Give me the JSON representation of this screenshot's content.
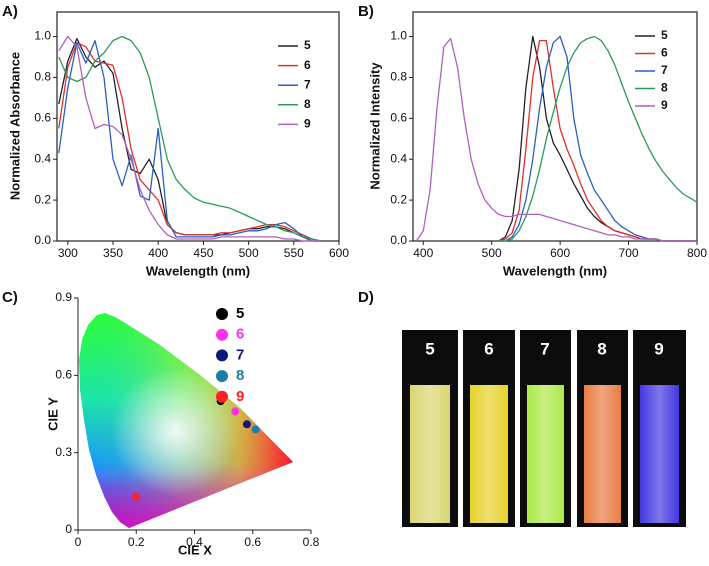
{
  "chart_data": [
    {
      "type": "line",
      "panel_label": "A)",
      "x_label": "Wavelength (nm)",
      "y_label": "Normalized Absorbance",
      "xlim": [
        288,
        600
      ],
      "xticks": [
        300,
        350,
        400,
        450,
        500,
        550,
        600
      ],
      "ylim": [
        0,
        1.12
      ],
      "yticks": [
        {
          "value": 0,
          "label": "0.0"
        },
        0.2,
        0.4,
        0.6,
        0.8,
        {
          "value": 1,
          "label": "1.0"
        }
      ],
      "x": [
        290,
        300,
        310,
        320,
        330,
        340,
        350,
        360,
        370,
        380,
        390,
        400,
        410,
        420,
        430,
        440,
        450,
        460,
        470,
        480,
        490,
        500,
        510,
        520,
        530,
        540,
        550,
        560,
        570,
        580,
        590,
        600
      ],
      "series": [
        {
          "name": "5",
          "color": "#222222",
          "values": [
            0.67,
            0.88,
            0.99,
            0.9,
            0.85,
            0.88,
            0.82,
            0.55,
            0.35,
            0.33,
            0.4,
            0.3,
            0.08,
            0.04,
            0.03,
            0.03,
            0.03,
            0.03,
            0.03,
            0.04,
            0.05,
            0.06,
            0.06,
            0.07,
            0.07,
            0.06,
            0.04,
            0.02,
            0.01,
            0,
            null,
            null
          ]
        },
        {
          "name": "6",
          "color": "#e0302a",
          "values": [
            0.55,
            0.85,
            0.97,
            0.95,
            0.88,
            0.87,
            0.86,
            0.7,
            0.45,
            0.3,
            0.25,
            0.2,
            0.08,
            0.04,
            0.03,
            0.03,
            0.03,
            0.03,
            0.04,
            0.04,
            0.05,
            0.06,
            0.07,
            0.08,
            0.08,
            0.07,
            0.05,
            0.03,
            0.01,
            0,
            null,
            null
          ]
        },
        {
          "name": "7",
          "color": "#2a5fc0",
          "values": [
            0.43,
            0.75,
            0.97,
            0.87,
            0.98,
            0.8,
            0.4,
            0.27,
            0.42,
            0.22,
            0.2,
            0.55,
            0.1,
            0.02,
            0.02,
            0.02,
            0.02,
            0.02,
            0.03,
            0.03,
            0.04,
            0.05,
            0.05,
            0.06,
            0.08,
            0.09,
            0.06,
            0.02,
            0,
            0,
            null,
            null
          ]
        },
        {
          "name": "8",
          "color": "#2a9a5a",
          "values": [
            0.9,
            0.8,
            0.78,
            0.8,
            0.88,
            0.92,
            0.98,
            1.0,
            0.98,
            0.92,
            0.8,
            0.6,
            0.4,
            0.3,
            0.25,
            0.21,
            0.19,
            0.18,
            0.17,
            0.16,
            0.14,
            0.12,
            0.1,
            0.08,
            0.07,
            0.05,
            0.04,
            0.02,
            0.01,
            0,
            null,
            null
          ]
        },
        {
          "name": "9",
          "color": "#b060c0",
          "values": [
            0.93,
            1.0,
            0.95,
            0.7,
            0.55,
            0.57,
            0.56,
            0.52,
            0.4,
            0.25,
            0.15,
            0.08,
            0.03,
            0.01,
            0.01,
            0.01,
            0.01,
            0.01,
            0.02,
            0.02,
            0.02,
            0.02,
            0.02,
            0.02,
            0.02,
            0.01,
            0.01,
            0,
            0,
            0,
            null,
            null
          ]
        }
      ]
    },
    {
      "type": "line",
      "panel_label": "B)",
      "x_label": "Wavelength (nm)",
      "y_label": "Normalized Intensity",
      "xlim": [
        385,
        800
      ],
      "xticks": [
        400,
        500,
        600,
        700,
        800
      ],
      "ylim": [
        0,
        1.12
      ],
      "yticks": [
        {
          "value": 0,
          "label": "0.0"
        },
        0.2,
        0.4,
        0.6,
        0.8,
        {
          "value": 1,
          "label": "1.0"
        }
      ],
      "x": [
        390,
        400,
        410,
        420,
        430,
        440,
        450,
        460,
        470,
        480,
        490,
        500,
        510,
        520,
        530,
        540,
        550,
        560,
        570,
        580,
        590,
        600,
        610,
        620,
        630,
        640,
        650,
        660,
        670,
        680,
        690,
        700,
        710,
        720,
        730,
        740,
        750,
        760,
        770,
        780,
        790,
        800
      ],
      "series": [
        {
          "name": "5",
          "color": "#222222",
          "values": [
            null,
            null,
            null,
            null,
            null,
            null,
            null,
            null,
            null,
            null,
            null,
            null,
            0,
            0.02,
            0.1,
            0.35,
            0.75,
            1.0,
            0.85,
            0.6,
            0.48,
            0.42,
            0.35,
            0.28,
            0.22,
            0.16,
            0.12,
            0.09,
            0.07,
            0.05,
            0.04,
            0.03,
            0.02,
            0.01,
            0.01,
            0.01,
            0,
            0,
            0,
            0,
            0,
            0
          ]
        },
        {
          "name": "6",
          "color": "#e0302a",
          "values": [
            null,
            null,
            null,
            null,
            null,
            null,
            null,
            null,
            null,
            null,
            null,
            null,
            0,
            0.01,
            0.04,
            0.15,
            0.45,
            0.8,
            0.98,
            0.98,
            0.75,
            0.55,
            0.45,
            0.37,
            0.28,
            0.2,
            0.15,
            0.1,
            0.07,
            0.05,
            0.04,
            0.03,
            0.02,
            0.01,
            0.01,
            0.01,
            0,
            0,
            0,
            0,
            0,
            0
          ]
        },
        {
          "name": "7",
          "color": "#2a5fc0",
          "values": [
            null,
            null,
            null,
            null,
            null,
            null,
            null,
            null,
            null,
            null,
            null,
            null,
            0,
            0,
            0.02,
            0.08,
            0.2,
            0.4,
            0.65,
            0.85,
            0.97,
            1.0,
            0.9,
            0.6,
            0.42,
            0.33,
            0.25,
            0.2,
            0.15,
            0.1,
            0.07,
            0.05,
            0.03,
            0.02,
            0.01,
            0.01,
            0,
            0,
            0,
            0,
            0,
            0
          ]
        },
        {
          "name": "8",
          "color": "#2a9a5a",
          "values": [
            null,
            null,
            null,
            null,
            null,
            null,
            null,
            null,
            null,
            null,
            null,
            null,
            0,
            0,
            0.01,
            0.05,
            0.12,
            0.22,
            0.35,
            0.5,
            0.63,
            0.75,
            0.85,
            0.92,
            0.97,
            0.99,
            1.0,
            0.98,
            0.93,
            0.86,
            0.77,
            0.68,
            0.6,
            0.52,
            0.45,
            0.39,
            0.34,
            0.3,
            0.26,
            0.23,
            0.21,
            0.19
          ]
        },
        {
          "name": "9",
          "color": "#b060c0",
          "values": [
            0,
            0.05,
            0.25,
            0.65,
            0.95,
            0.99,
            0.85,
            0.6,
            0.4,
            0.28,
            0.2,
            0.16,
            0.13,
            0.12,
            0.12,
            0.13,
            0.13,
            0.13,
            0.13,
            0.12,
            0.11,
            0.1,
            0.09,
            0.08,
            0.07,
            0.06,
            0.05,
            0.04,
            0.03,
            0.03,
            0.02,
            0.02,
            0.01,
            0.01,
            0.01,
            0.01,
            0,
            0,
            0,
            0,
            0,
            0
          ]
        }
      ]
    },
    {
      "type": "scatter",
      "panel_label": "C)",
      "x_label": "CIE X",
      "y_label": "CIE Y",
      "xlim": [
        0,
        0.8
      ],
      "xticks": [
        0,
        0.2,
        0.4,
        0.6,
        0.8
      ],
      "ylim": [
        0,
        0.9
      ],
      "yticks": [
        0,
        0.3,
        0.6,
        0.9
      ],
      "series": [
        {
          "name": "5",
          "color": "#000000",
          "x": [
            0.49
          ],
          "values": [
            0.5
          ]
        },
        {
          "name": "6",
          "color": "#ff30ee",
          "x": [
            0.54
          ],
          "values": [
            0.46
          ]
        },
        {
          "name": "7",
          "color": "#101880",
          "x": [
            0.58
          ],
          "values": [
            0.41
          ]
        },
        {
          "name": "8",
          "color": "#1a7fa8",
          "x": [
            0.61
          ],
          "values": [
            0.39
          ]
        },
        {
          "name": "9",
          "color": "#ff2020",
          "x": [
            0.2
          ],
          "values": [
            0.13
          ]
        }
      ]
    }
  ],
  "photo": {
    "panel_label": "D)",
    "labels": [
      "5",
      "6",
      "7",
      "8",
      "9"
    ]
  }
}
